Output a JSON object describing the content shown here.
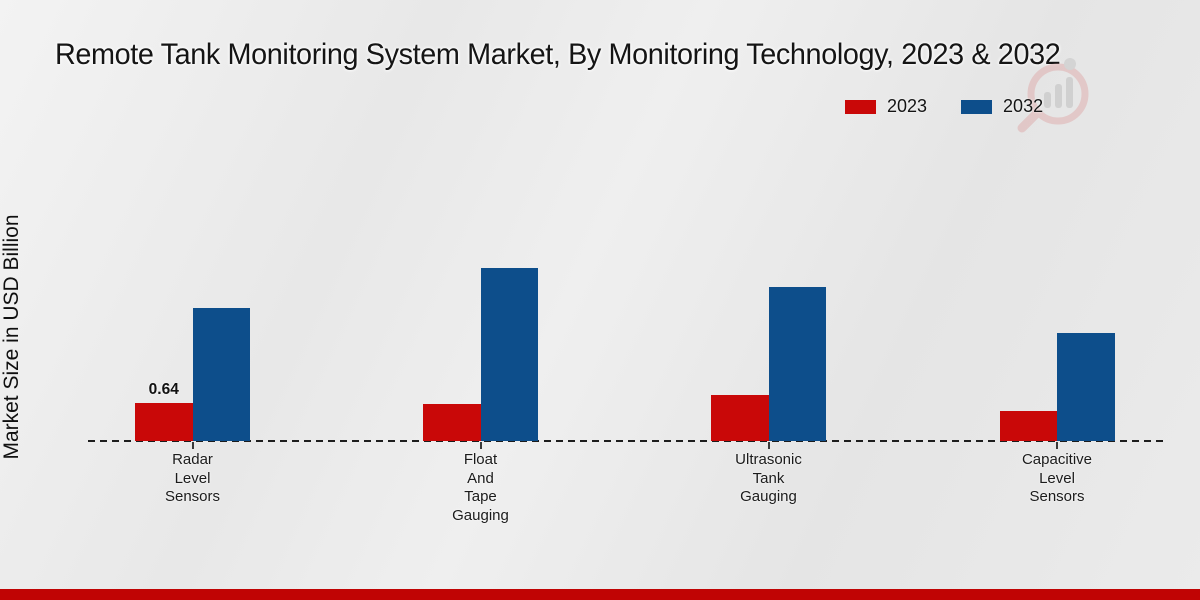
{
  "chart_data": {
    "type": "bar",
    "title": "Remote Tank Monitoring System Market, By Monitoring Technology, 2023 & 2032",
    "ylabel": "Market Size in USD Billion",
    "xlabel": "",
    "grid": "off",
    "legend_position": "top-right",
    "baseline_style": "dashed",
    "ylim_px_note": "no numeric y-axis ticks shown",
    "categories": [
      {
        "label": "Radar Level Sensors",
        "lines": [
          "Radar",
          "Level",
          "Sensors"
        ]
      },
      {
        "label": "Float And Tape Gauging",
        "lines": [
          "Float",
          "And",
          "Tape",
          "Gauging"
        ]
      },
      {
        "label": "Ultrasonic Tank Gauging",
        "lines": [
          "Ultrasonic",
          "Tank",
          "Gauging"
        ]
      },
      {
        "label": "Capacitive Level Sensors",
        "lines": [
          "Capacitive",
          "Level",
          "Sensors"
        ]
      }
    ],
    "series": [
      {
        "name": "2023",
        "color": "#c90808",
        "values": [
          0.64,
          0.62,
          0.77,
          0.5
        ],
        "data_labels": [
          "0.64",
          null,
          null,
          null
        ]
      },
      {
        "name": "2032",
        "color": "#0d4e8b",
        "values": [
          2.24,
          2.91,
          2.59,
          1.82
        ],
        "data_labels": [
          null,
          null,
          null,
          null
        ]
      }
    ]
  },
  "colors": {
    "bar_2023": "#c90808",
    "bar_2032": "#0d4e8b",
    "footer_band": "#c00404",
    "background": "#e9e9e9",
    "watermark_red": "#dfb0b0",
    "watermark_gray": "#c0c0c0"
  },
  "footer": {
    "band": ""
  },
  "watermark": {
    "name": "magnifier-bar-chart-logo"
  }
}
